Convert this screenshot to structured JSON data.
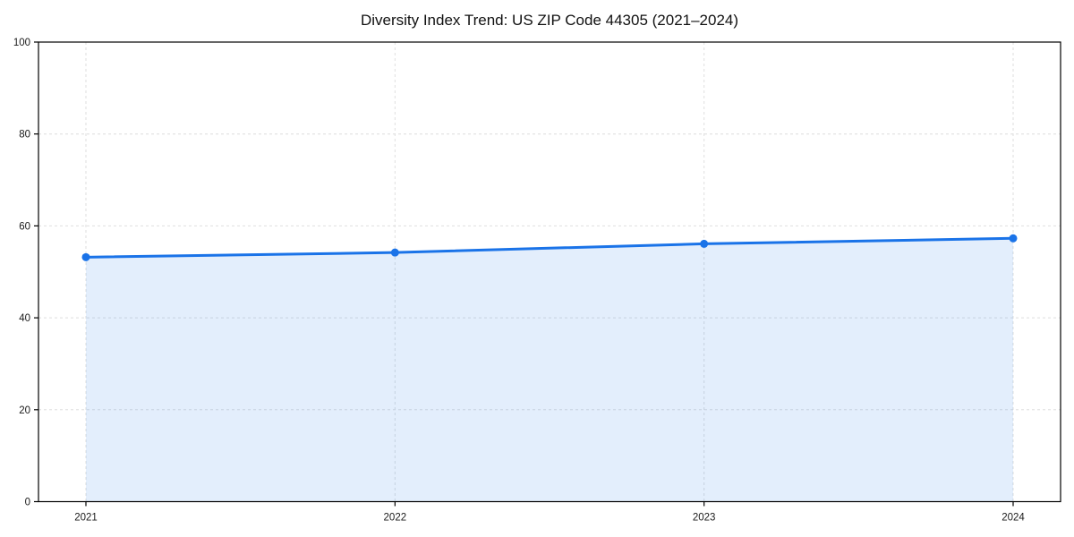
{
  "chart_data": {
    "type": "area",
    "title": "Diversity Index Trend: US ZIP Code 44305 (2021–2024)",
    "x": [
      2021,
      2022,
      2023,
      2024
    ],
    "series": [
      {
        "name": "Diversity Index",
        "values": [
          53.2,
          54.2,
          56.1,
          57.3
        ]
      }
    ],
    "xlabel": "",
    "ylabel": "",
    "ylim": [
      0,
      100
    ],
    "yticks": [
      0,
      20,
      40,
      60,
      80,
      100
    ],
    "grid": "dashed-both-axes",
    "legend_position": "none",
    "colors": {
      "line": "#1a73e8",
      "marker": "#1a73e8",
      "fill": "rgba(26,115,232,0.12)",
      "grid": "#dedede",
      "spine": "#000000",
      "tick_text": "#1a1a1a",
      "background": "#ffffff"
    }
  }
}
